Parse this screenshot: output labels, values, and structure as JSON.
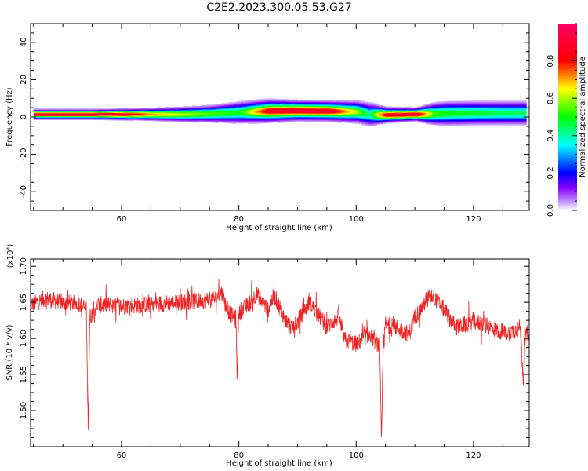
{
  "title": "C2E2.2023.300.05.53.G27",
  "chart_data": [
    {
      "type": "heatmap",
      "xlabel": "Height of straight line (km)",
      "ylabel": "Frequency (Hz)",
      "xlim": [
        44.5,
        129.5
      ],
      "ylim": [
        -50,
        50
      ],
      "xticks": [
        60,
        80,
        100,
        120
      ],
      "yticks": [
        -40,
        -20,
        0,
        20,
        40
      ],
      "grid": false,
      "colorbar": {
        "label": "Normalized spectral amplitude",
        "range": [
          0,
          1
        ],
        "ticks": [
          0.0,
          0.2,
          0.4,
          0.6,
          0.8
        ],
        "colormap": [
          "#ffffff",
          "#8800ff",
          "#0000ff",
          "#00ffff",
          "#00ff00",
          "#ffff00",
          "#ff0000",
          "#ff0080"
        ]
      },
      "band_profile": {
        "x": [
          45,
          50,
          55,
          60,
          65,
          70,
          75,
          80,
          85,
          90,
          95,
          100,
          102,
          105,
          110,
          113,
          115,
          120,
          125,
          129
        ],
        "center_freq": [
          1.5,
          1.5,
          1.5,
          1.5,
          1.5,
          1.5,
          1.8,
          2.5,
          3.3,
          3.5,
          3.3,
          2.8,
          1.5,
          1.2,
          1.5,
          1.8,
          2.0,
          2.2,
          2.2,
          2.2
        ],
        "peak_amplitude": [
          0.92,
          0.92,
          0.92,
          0.9,
          0.72,
          0.62,
          0.55,
          0.5,
          0.88,
          0.92,
          0.9,
          0.6,
          0.42,
          0.88,
          0.92,
          0.55,
          0.5,
          0.48,
          0.45,
          0.45
        ],
        "half_width": [
          2.0,
          2.0,
          2.0,
          2.2,
          2.5,
          3.0,
          3.5,
          4.5,
          4.5,
          4.0,
          4.0,
          4.5,
          5.0,
          3.0,
          2.6,
          4.5,
          5.0,
          5.0,
          5.0,
          5.0
        ]
      }
    },
    {
      "type": "line",
      "xlabel": "Height of straight line (km)",
      "ylabel": "SNR (10 * v/v)",
      "y_multiplier": "(x10⁴)",
      "xlim": [
        44.5,
        129.5
      ],
      "ylim": [
        1.45,
        1.71
      ],
      "xticks": [
        60,
        80,
        100,
        120
      ],
      "yticks": [
        1.5,
        1.55,
        1.6,
        1.65,
        1.7
      ],
      "grid": false,
      "series": [
        {
          "color": "#ee2222",
          "x": [
            45,
            47,
            50,
            53,
            54,
            54.3,
            54.6,
            56,
            60,
            63,
            66,
            70,
            73,
            76,
            77,
            78,
            79.5,
            79.7,
            80,
            82,
            83,
            85,
            86,
            88,
            89,
            90,
            92,
            93,
            95,
            97,
            98,
            100,
            102,
            104,
            104.3,
            104.6,
            105,
            107,
            109,
            110,
            111,
            112,
            113,
            114,
            115,
            117,
            119,
            120,
            122,
            124,
            126,
            128,
            128.5,
            128.8,
            129.5
          ],
          "y": [
            1.648,
            1.655,
            1.65,
            1.648,
            1.64,
            1.48,
            1.63,
            1.647,
            1.645,
            1.646,
            1.648,
            1.65,
            1.652,
            1.655,
            1.665,
            1.64,
            1.625,
            1.55,
            1.635,
            1.65,
            1.662,
            1.64,
            1.66,
            1.625,
            1.615,
            1.622,
            1.65,
            1.64,
            1.615,
            1.63,
            1.598,
            1.592,
            1.605,
            1.59,
            1.455,
            1.58,
            1.62,
            1.615,
            1.605,
            1.63,
            1.64,
            1.655,
            1.66,
            1.65,
            1.64,
            1.615,
            1.62,
            1.625,
            1.618,
            1.612,
            1.608,
            1.615,
            1.54,
            1.6,
            1.612
          ]
        }
      ]
    }
  ]
}
